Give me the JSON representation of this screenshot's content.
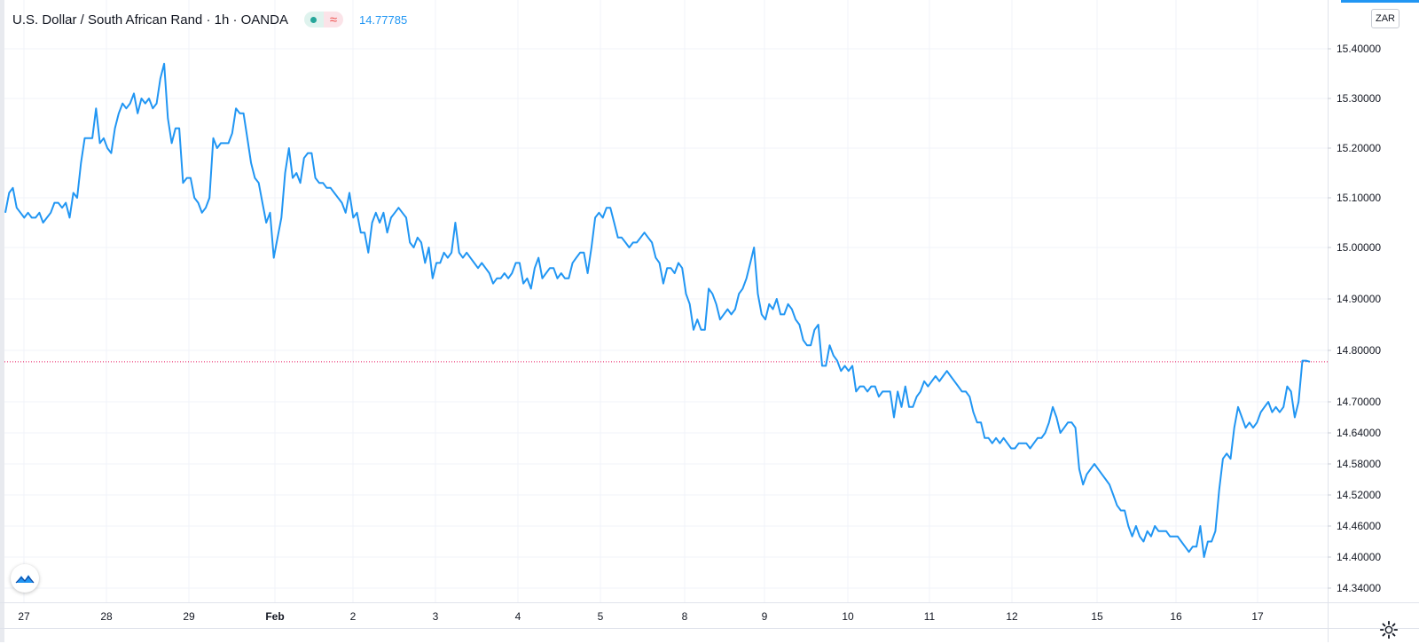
{
  "legend": {
    "symbol_name": "U.S. Dollar / South African Rand · 1h · OANDA",
    "approx_symbol": "≈",
    "last_value": "14.77785"
  },
  "currency_button": "ZAR",
  "icons": {
    "logo": "tradingview-logo-icon",
    "settings": "gear-icon"
  },
  "colors": {
    "line": "#2196f3",
    "grid": "#f0f3fa",
    "axis_text": "#131722",
    "last_line": "#e91e63"
  },
  "chart_data": {
    "type": "line",
    "title": "U.S. Dollar / South African Rand · 1h · OANDA",
    "xlabel": "",
    "ylabel": "",
    "x_ticks": [
      "27",
      "28",
      "29",
      "Feb",
      "2",
      "3",
      "4",
      "5",
      "8",
      "9",
      "10",
      "11",
      "12",
      "15",
      "16",
      "17"
    ],
    "y_ticks": [
      "15.40000",
      "15.30000",
      "15.20000",
      "15.10000",
      "15.00000",
      "14.90000",
      "14.80000",
      "14.70000",
      "14.64000",
      "14.58000",
      "14.52000",
      "14.46000",
      "14.40000",
      "14.34000"
    ],
    "ylim": [
      14.32,
      15.44
    ],
    "last_value": 14.77785,
    "grid": true,
    "series": [
      {
        "values": [
          15.07,
          15.11,
          15.12,
          15.08,
          15.07,
          15.06,
          15.07,
          15.06,
          15.06,
          15.07,
          15.05,
          15.06,
          15.07,
          15.09,
          15.09,
          15.08,
          15.09,
          15.06,
          15.11,
          15.1,
          15.17,
          15.22,
          15.22,
          15.22,
          15.28,
          15.21,
          15.22,
          15.2,
          15.19,
          15.24,
          15.27,
          15.29,
          15.28,
          15.29,
          15.31,
          15.27,
          15.3,
          15.29,
          15.3,
          15.28,
          15.29,
          15.34,
          15.37,
          15.26,
          15.21,
          15.24,
          15.24,
          15.13,
          15.14,
          15.14,
          15.1,
          15.09,
          15.07,
          15.08,
          15.1,
          15.22,
          15.2,
          15.21,
          15.21,
          15.21,
          15.23,
          15.28,
          15.27,
          15.27,
          15.22,
          15.17,
          15.14,
          15.13,
          15.09,
          15.05,
          15.07,
          14.98,
          15.02,
          15.06,
          15.15,
          15.2,
          15.14,
          15.15,
          15.13,
          15.18,
          15.19,
          15.19,
          15.14,
          15.13,
          15.13,
          15.12,
          15.12,
          15.11,
          15.1,
          15.09,
          15.07,
          15.11,
          15.06,
          15.07,
          15.03,
          15.03,
          14.99,
          15.05,
          15.07,
          15.05,
          15.07,
          15.03,
          15.06,
          15.07,
          15.08,
          15.07,
          15.06,
          15.01,
          15.0,
          15.02,
          15.01,
          14.97,
          15.0,
          14.94,
          14.97,
          14.97,
          14.99,
          14.98,
          14.99,
          15.05,
          14.99,
          14.98,
          14.99,
          14.98,
          14.97,
          14.96,
          14.97,
          14.96,
          14.95,
          14.93,
          14.94,
          14.94,
          14.95,
          14.94,
          14.95,
          14.97,
          14.97,
          14.93,
          14.94,
          14.92,
          14.96,
          14.98,
          14.94,
          14.95,
          14.96,
          14.96,
          14.94,
          14.95,
          14.94,
          14.94,
          14.97,
          14.98,
          14.99,
          14.99,
          14.95,
          15.0,
          15.06,
          15.07,
          15.06,
          15.08,
          15.08,
          15.05,
          15.02,
          15.02,
          15.01,
          15.0,
          15.01,
          15.01,
          15.02,
          15.03,
          15.02,
          15.01,
          14.98,
          14.97,
          14.93,
          14.96,
          14.96,
          14.95,
          14.97,
          14.96,
          14.91,
          14.89,
          14.84,
          14.86,
          14.84,
          14.84,
          14.92,
          14.91,
          14.89,
          14.86,
          14.87,
          14.88,
          14.87,
          14.88,
          14.91,
          14.92,
          14.94,
          14.97,
          15.0,
          14.91,
          14.87,
          14.86,
          14.89,
          14.88,
          14.9,
          14.87,
          14.87,
          14.89,
          14.88,
          14.86,
          14.85,
          14.82,
          14.81,
          14.81,
          14.84,
          14.85,
          14.77,
          14.77,
          14.81,
          14.79,
          14.78,
          14.76,
          14.77,
          14.76,
          14.77,
          14.72,
          14.73,
          14.73,
          14.72,
          14.73,
          14.73,
          14.71,
          14.72,
          14.72,
          14.72,
          14.67,
          14.72,
          14.69,
          14.73,
          14.69,
          14.69,
          14.71,
          14.72,
          14.74,
          14.73,
          14.74,
          14.75,
          14.74,
          14.75,
          14.76,
          14.75,
          14.74,
          14.73,
          14.72,
          14.72,
          14.71,
          14.68,
          14.66,
          14.66,
          14.63,
          14.63,
          14.62,
          14.63,
          14.62,
          14.63,
          14.62,
          14.61,
          14.61,
          14.62,
          14.62,
          14.62,
          14.61,
          14.62,
          14.63,
          14.63,
          14.64,
          14.66,
          14.69,
          14.67,
          14.64,
          14.65,
          14.66,
          14.66,
          14.65,
          14.57,
          14.54,
          14.56,
          14.57,
          14.58,
          14.57,
          14.56,
          14.55,
          14.54,
          14.52,
          14.5,
          14.49,
          14.49,
          14.46,
          14.44,
          14.46,
          14.44,
          14.43,
          14.45,
          14.44,
          14.46,
          14.45,
          14.45,
          14.45,
          14.44,
          14.44,
          14.44,
          14.43,
          14.42,
          14.41,
          14.42,
          14.42,
          14.46,
          14.4,
          14.43,
          14.43,
          14.45,
          14.53,
          14.59,
          14.6,
          14.59,
          14.65,
          14.69,
          14.67,
          14.65,
          14.66,
          14.65,
          14.66,
          14.68,
          14.69,
          14.7,
          14.68,
          14.69,
          14.68,
          14.69,
          14.73,
          14.72,
          14.67,
          14.7,
          14.78,
          14.78,
          14.77785
        ]
      }
    ]
  }
}
